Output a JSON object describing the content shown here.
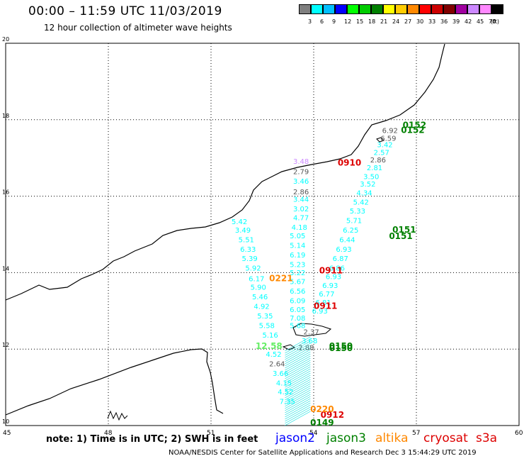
{
  "header": {
    "title": "00:00 – 11:59 UTC 11/03/2019",
    "subtitle": "12 hour collection of altimeter wave heights"
  },
  "legend": {
    "unit": "(ft)",
    "bins": [
      {
        "label": "3",
        "color": "#7f7f7f"
      },
      {
        "label": "6",
        "color": "#00ffff"
      },
      {
        "label": "9",
        "color": "#00bfff"
      },
      {
        "label": "12",
        "color": "#0000ff"
      },
      {
        "label": "15",
        "color": "#00ff00"
      },
      {
        "label": "18",
        "color": "#00cc00"
      },
      {
        "label": "21",
        "color": "#008000"
      },
      {
        "label": "24",
        "color": "#ffff00"
      },
      {
        "label": "27",
        "color": "#ffcc00"
      },
      {
        "label": "30",
        "color": "#ff8800"
      },
      {
        "label": "33",
        "color": "#ff0000"
      },
      {
        "label": "36",
        "color": "#cc0000"
      },
      {
        "label": "39",
        "color": "#800000"
      },
      {
        "label": "42",
        "color": "#a000a0"
      },
      {
        "label": "45",
        "color": "#cc88ff"
      },
      {
        "label": "70",
        "color": "#ff88ff"
      },
      {
        "label": "",
        "color": "#000000"
      }
    ]
  },
  "axes": {
    "lon_ticks": [
      "45",
      "48",
      "51",
      "54",
      "57",
      "60"
    ],
    "lat_ticks": [
      "20",
      "18",
      "16",
      "14",
      "12",
      "10"
    ],
    "lon_range": [
      45,
      60
    ],
    "lat_range": [
      10,
      20
    ],
    "grid": "dotted"
  },
  "tracks": [
    {
      "name": "west",
      "color": "#00ffff",
      "points": [
        {
          "lon": 51.6,
          "lat": 15.27,
          "v": "5.42"
        },
        {
          "lon": 51.7,
          "lat": 15.05,
          "v": "3.49"
        },
        {
          "lon": 51.8,
          "lat": 14.8,
          "v": "5.51"
        },
        {
          "lon": 51.85,
          "lat": 14.55,
          "v": "6.33"
        },
        {
          "lon": 51.9,
          "lat": 14.3,
          "v": "5.39"
        },
        {
          "lon": 52.0,
          "lat": 14.05,
          "v": "5.92"
        },
        {
          "lon": 52.1,
          "lat": 13.78,
          "v": "6.17"
        },
        {
          "lon": 52.15,
          "lat": 13.55,
          "v": "5.90"
        },
        {
          "lon": 52.2,
          "lat": 13.3,
          "v": "5.46"
        },
        {
          "lon": 52.25,
          "lat": 13.05,
          "v": "4.92"
        },
        {
          "lon": 52.35,
          "lat": 12.8,
          "v": "5.35"
        },
        {
          "lon": 52.4,
          "lat": 12.55,
          "v": "5.58"
        },
        {
          "lon": 52.5,
          "lat": 12.3,
          "v": "5.16"
        },
        {
          "lon": 52.6,
          "lat": 11.8,
          "v": "4.52"
        },
        {
          "lon": 52.7,
          "lat": 11.55,
          "v": "2.64",
          "color": "#555555"
        },
        {
          "lon": 52.8,
          "lat": 11.3,
          "v": "3.66"
        },
        {
          "lon": 52.9,
          "lat": 11.05,
          "v": "4.15"
        },
        {
          "lon": 52.95,
          "lat": 10.82,
          "v": "4.52"
        },
        {
          "lon": 53.0,
          "lat": 10.57,
          "v": "7.35"
        }
      ]
    },
    {
      "name": "middle",
      "color": "#00ffff",
      "points": [
        {
          "lon": 53.4,
          "lat": 16.85,
          "v": "3.48",
          "color": "#cc88ff"
        },
        {
          "lon": 53.4,
          "lat": 16.58,
          "v": "2.79",
          "color": "#555555"
        },
        {
          "lon": 53.4,
          "lat": 16.33,
          "v": "3.46"
        },
        {
          "lon": 53.4,
          "lat": 16.05,
          "v": "2.86",
          "color": "#555555"
        },
        {
          "lon": 53.4,
          "lat": 15.85,
          "v": "3.44"
        },
        {
          "lon": 53.4,
          "lat": 15.6,
          "v": "3.02"
        },
        {
          "lon": 53.4,
          "lat": 15.37,
          "v": "4.77"
        },
        {
          "lon": 53.35,
          "lat": 15.12,
          "v": "4.18"
        },
        {
          "lon": 53.3,
          "lat": 14.9,
          "v": "5.05"
        },
        {
          "lon": 53.3,
          "lat": 14.65,
          "v": "5.14"
        },
        {
          "lon": 53.3,
          "lat": 14.4,
          "v": "6.19"
        },
        {
          "lon": 53.3,
          "lat": 14.15,
          "v": "5.23"
        },
        {
          "lon": 53.3,
          "lat": 13.93,
          "v": "5.22"
        },
        {
          "lon": 53.3,
          "lat": 13.7,
          "v": "5.67"
        },
        {
          "lon": 53.3,
          "lat": 13.45,
          "v": "6.56"
        },
        {
          "lon": 53.3,
          "lat": 13.2,
          "v": "6.09"
        },
        {
          "lon": 53.3,
          "lat": 12.97,
          "v": "6.05"
        },
        {
          "lon": 53.3,
          "lat": 12.75,
          "v": "7.08"
        },
        {
          "lon": 53.3,
          "lat": 12.55,
          "v": "5.68"
        },
        {
          "lon": 53.7,
          "lat": 12.38,
          "v": "2.37",
          "color": "#555555"
        },
        {
          "lon": 53.65,
          "lat": 12.15,
          "v": "3.68"
        },
        {
          "lon": 53.55,
          "lat": 11.98,
          "v": "2.88",
          "color": "#555555"
        }
      ]
    },
    {
      "name": "east",
      "color": "#00ffff",
      "points": [
        {
          "lon": 56.0,
          "lat": 17.65,
          "v": "6.92",
          "color": "#555555"
        },
        {
          "lon": 55.95,
          "lat": 17.45,
          "v": "6.59",
          "color": "#555555"
        },
        {
          "lon": 55.85,
          "lat": 17.28,
          "v": "3.42"
        },
        {
          "lon": 55.75,
          "lat": 17.08,
          "v": "2.57"
        },
        {
          "lon": 55.65,
          "lat": 16.88,
          "v": "2.86",
          "color": "#555555"
        },
        {
          "lon": 55.55,
          "lat": 16.68,
          "v": "2.81"
        },
        {
          "lon": 55.45,
          "lat": 16.45,
          "v": "3.50"
        },
        {
          "lon": 55.35,
          "lat": 16.25,
          "v": "3.52"
        },
        {
          "lon": 55.25,
          "lat": 16.02,
          "v": "4.34"
        },
        {
          "lon": 55.15,
          "lat": 15.78,
          "v": "5.42"
        },
        {
          "lon": 55.05,
          "lat": 15.55,
          "v": "5.33"
        },
        {
          "lon": 54.95,
          "lat": 15.3,
          "v": "5.71"
        },
        {
          "lon": 54.85,
          "lat": 15.05,
          "v": "6.25"
        },
        {
          "lon": 54.75,
          "lat": 14.8,
          "v": "6.44"
        },
        {
          "lon": 54.65,
          "lat": 14.55,
          "v": "6.93"
        },
        {
          "lon": 54.55,
          "lat": 14.3,
          "v": "6.87"
        },
        {
          "lon": 54.45,
          "lat": 14.05,
          "v": "6.86"
        },
        {
          "lon": 54.35,
          "lat": 13.83,
          "v": "6.93"
        },
        {
          "lon": 54.25,
          "lat": 13.6,
          "v": "6.93"
        },
        {
          "lon": 54.15,
          "lat": 13.38,
          "v": "6.77"
        },
        {
          "lon": 54.05,
          "lat": 13.15,
          "v": "6.81"
        },
        {
          "lon": 53.95,
          "lat": 12.93,
          "v": "6.93"
        }
      ]
    }
  ],
  "time_labels": [
    {
      "text": "0152",
      "lon": 56.6,
      "lat": 17.78,
      "color": "#008000"
    },
    {
      "text": "0152",
      "lon": 56.55,
      "lat": 17.65,
      "color": "#008000"
    },
    {
      "text": "0910",
      "lon": 54.7,
      "lat": 16.8,
      "color": "#dd0000"
    },
    {
      "text": "0151",
      "lon": 56.3,
      "lat": 15.05,
      "color": "#008000"
    },
    {
      "text": "0151",
      "lon": 56.2,
      "lat": 14.88,
      "color": "#008000"
    },
    {
      "text": "0911",
      "lon": 54.16,
      "lat": 13.98,
      "color": "#dd0000"
    },
    {
      "text": "0221",
      "lon": 52.7,
      "lat": 13.78,
      "color": "#ff8800"
    },
    {
      "text": "0911",
      "lon": 54.0,
      "lat": 13.05,
      "color": "#dd0000"
    },
    {
      "text": "0150",
      "lon": 54.45,
      "lat": 12.0,
      "color": "#008000"
    },
    {
      "text": "0150",
      "lon": 54.45,
      "lat": 11.95,
      "color": "#008000"
    },
    {
      "text": "0912",
      "lon": 54.2,
      "lat": 10.2,
      "color": "#dd0000"
    },
    {
      "text": "0220",
      "lon": 53.9,
      "lat": 10.35,
      "color": "#ff8800"
    },
    {
      "text": "0149",
      "lon": 53.9,
      "lat": 10.0,
      "color": "#008000"
    },
    {
      "text": "12.58",
      "lon": 52.3,
      "lat": 12.0,
      "color": "#66ee66"
    }
  ],
  "footer": {
    "note": "note: 1) Time is in UTC; 2) SWH is in feet",
    "satellites": [
      {
        "name": "jason2",
        "color": "#0000ff"
      },
      {
        "name": "jason3",
        "color": "#008000"
      },
      {
        "name": "altika",
        "color": "#ff8800"
      },
      {
        "name": "cryosat",
        "color": "#dd0000"
      },
      {
        "name": "s3a",
        "color": "#dd0000"
      }
    ],
    "credit": "NOAA/NESDIS Center for Satellite Applications and Research    Dec  3 15:44:29 UTC 2019"
  },
  "map_features": {
    "coastline": "Arabian Peninsula and Horn of Africa",
    "islands": [
      "Socotra"
    ]
  }
}
